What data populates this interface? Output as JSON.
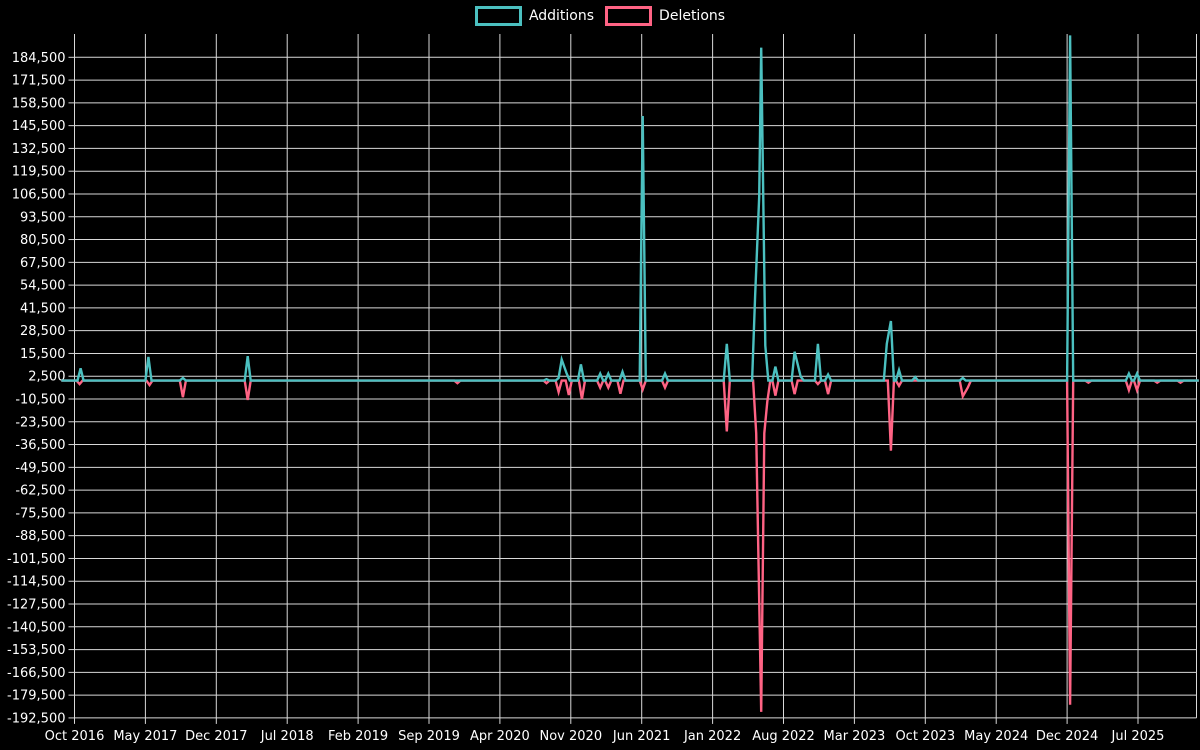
{
  "page": {
    "background": "#000000",
    "text_color": "#ffffff",
    "grid_color": "#ffffff"
  },
  "legend": {
    "items": [
      {
        "label": "Additions",
        "color": "#4bc0c0"
      },
      {
        "label": "Deletions",
        "color": "#ff6384"
      }
    ]
  },
  "chart_data": {
    "type": "line",
    "title": "",
    "background": "#000000",
    "grid": true,
    "legend_position": "top",
    "x_unit": "months since Oct 2016 (fractional; ticks every 7 months)",
    "x_axis": {
      "tick_labels": [
        "Oct 2016",
        "May 2017",
        "Dec 2017",
        "Jul 2018",
        "Feb 2019",
        "Sep 2019",
        "Apr 2020",
        "Nov 2020",
        "Jun 2021",
        "Jan 2022",
        "Aug 2022",
        "Mar 2023",
        "Oct 2023",
        "May 2024",
        "Dec 2024",
        "Jul 2025"
      ],
      "tick_interval_months": 7,
      "data_start_month": -1.3,
      "data_end_month": 111.0
    },
    "y_axis": {
      "tick_max": 184500,
      "tick_min": -192500,
      "tick_step": 13000,
      "tick_labels": [
        "184,500",
        "171,500",
        "158,500",
        "145,500",
        "132,500",
        "119,500",
        "106,500",
        "93,500",
        "80,500",
        "67,500",
        "54,500",
        "41,500",
        "28,500",
        "15,500",
        "2,500",
        "-10,500",
        "-23,500",
        "-36,500",
        "-49,500",
        "-62,500",
        "-75,500",
        "-88,500",
        "-101,500",
        "-114,500",
        "-127,500",
        "-140,500",
        "-153,500",
        "-166,500",
        "-179,500",
        "-192,500"
      ]
    },
    "series": [
      {
        "name": "Additions",
        "color": "#4bc0c0",
        "baseline": 0,
        "points": [
          [
            0.6,
            7000
          ],
          [
            7.3,
            13500
          ],
          [
            10.7,
            1500
          ],
          [
            17.1,
            14000
          ],
          [
            46.6,
            800
          ],
          [
            47.8,
            1500
          ],
          [
            48.1,
            12000
          ],
          [
            48.6,
            4000
          ],
          [
            50.0,
            9300
          ],
          [
            51.9,
            4000
          ],
          [
            52.7,
            4000
          ],
          [
            54.1,
            5000
          ],
          [
            56.1,
            151000
          ],
          [
            58.3,
            4000
          ],
          [
            64.4,
            21000
          ],
          [
            67.2,
            48000
          ],
          [
            67.6,
            105000
          ],
          [
            67.8,
            190000
          ],
          [
            68.2,
            20000
          ],
          [
            69.2,
            8000
          ],
          [
            71.1,
            16500
          ],
          [
            71.7,
            2300
          ],
          [
            73.4,
            21000
          ],
          [
            74.4,
            3500
          ],
          [
            80.2,
            21000
          ],
          [
            80.6,
            34000
          ],
          [
            81.4,
            6000
          ],
          [
            83.0,
            2000
          ],
          [
            87.7,
            1500
          ],
          [
            98.3,
            197000
          ],
          [
            104.1,
            4000
          ],
          [
            104.9,
            4000
          ]
        ]
      },
      {
        "name": "Deletions",
        "color": "#ff6384",
        "baseline": 0,
        "points": [
          [
            0.5,
            -2000
          ],
          [
            7.4,
            -2500
          ],
          [
            10.7,
            -9400
          ],
          [
            17.1,
            -11000
          ],
          [
            37.8,
            -1500
          ],
          [
            46.6,
            -1500
          ],
          [
            47.8,
            -6500
          ],
          [
            48.8,
            -8200
          ],
          [
            50.1,
            -10500
          ],
          [
            51.9,
            -4000
          ],
          [
            52.7,
            -4000
          ],
          [
            53.9,
            -7500
          ],
          [
            56.1,
            -5000
          ],
          [
            58.3,
            -4000
          ],
          [
            64.4,
            -29000
          ],
          [
            67.3,
            -30000
          ],
          [
            67.8,
            -189000
          ],
          [
            68.1,
            -30000
          ],
          [
            68.4,
            -12000
          ],
          [
            69.2,
            -8600
          ],
          [
            71.1,
            -7700
          ],
          [
            73.4,
            -2000
          ],
          [
            74.4,
            -7700
          ],
          [
            80.6,
            -40000
          ],
          [
            81.4,
            -3000
          ],
          [
            87.7,
            -9000
          ],
          [
            88.2,
            -4000
          ],
          [
            98.3,
            -185000
          ],
          [
            100.1,
            -1200
          ],
          [
            104.1,
            -5500
          ],
          [
            104.9,
            -5500
          ],
          [
            106.9,
            -1200
          ],
          [
            109.2,
            -1200
          ]
        ]
      }
    ]
  }
}
